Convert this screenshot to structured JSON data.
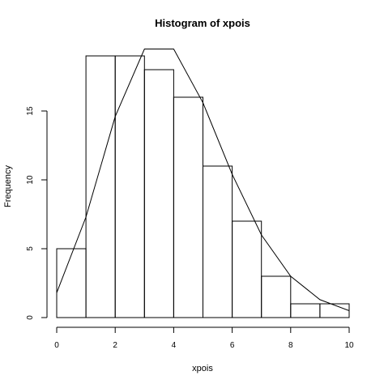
{
  "chart_data": {
    "type": "bar",
    "title": "Histogram of xpois",
    "xlabel": "xpois",
    "ylabel": "Frequency",
    "bins": [
      [
        0,
        1
      ],
      [
        1,
        2
      ],
      [
        2,
        3
      ],
      [
        3,
        4
      ],
      [
        4,
        5
      ],
      [
        5,
        6
      ],
      [
        6,
        7
      ],
      [
        7,
        8
      ],
      [
        8,
        9
      ],
      [
        9,
        10
      ]
    ],
    "values": [
      5,
      19,
      19,
      18,
      16,
      11,
      7,
      3,
      1,
      1
    ],
    "xlim": [
      0,
      10
    ],
    "ylim": [
      0,
      20
    ],
    "xticks": [
      0,
      2,
      4,
      6,
      8,
      10
    ],
    "yticks": [
      0,
      5,
      10,
      15
    ],
    "series": [
      {
        "type": "line",
        "x": [
          0,
          1,
          2,
          3,
          4,
          5,
          6,
          7,
          8,
          9,
          10
        ],
        "y": [
          1.8,
          7.3,
          14.6,
          19.5,
          19.5,
          15.6,
          10.4,
          6.0,
          3.0,
          1.3,
          0.5
        ]
      }
    ],
    "grid": false
  }
}
